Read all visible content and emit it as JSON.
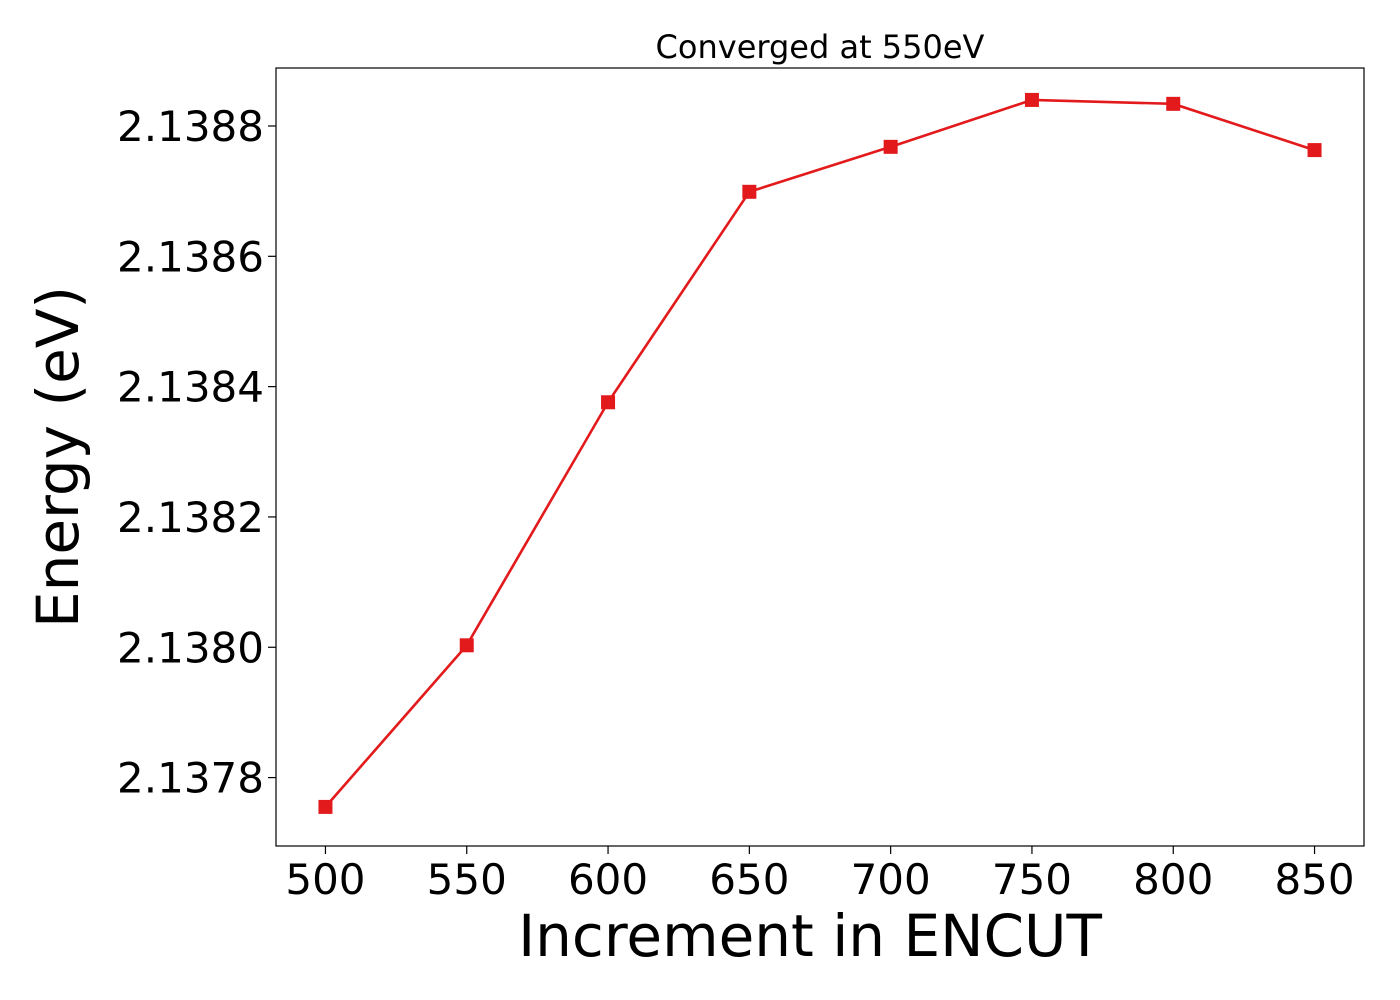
{
  "chart_data": {
    "type": "line",
    "title": "Converged at 550eV",
    "xlabel": "Increment in ENCUT",
    "ylabel": "Energy (eV)",
    "x": [
      500,
      550,
      600,
      650,
      700,
      750,
      800,
      850
    ],
    "xticks": [
      "500",
      "550",
      "600",
      "650",
      "700",
      "750",
      "800",
      "850"
    ],
    "yticks": [
      "2.1378",
      "2.1380",
      "2.1382",
      "2.1384",
      "2.1386",
      "2.1388"
    ],
    "ytick_values": [
      2.1378,
      2.138,
      2.1382,
      2.1384,
      2.1386,
      2.1388
    ],
    "xlim": [
      482.5,
      867.5
    ],
    "ylim": [
      2.137695,
      2.138889
    ],
    "grid": false,
    "series": [
      {
        "values": [
          2.137755,
          2.138003,
          2.138376,
          2.138699,
          2.138768,
          2.13884,
          2.138834,
          2.138763
        ],
        "color": "#e31a1c",
        "marker": "square"
      }
    ]
  }
}
